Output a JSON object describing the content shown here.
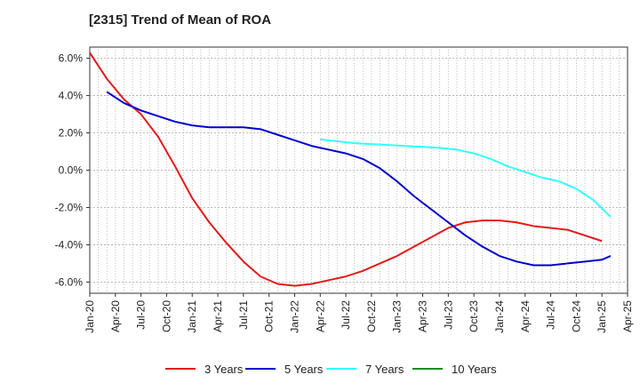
{
  "chart_data": {
    "type": "line",
    "title": "[2315]  Trend of Mean of ROA",
    "xlabel": "",
    "ylabel": "",
    "ylim": [
      -6.6,
      6.6
    ],
    "yticks": [
      6,
      4,
      2,
      0,
      -2,
      -4,
      -6
    ],
    "ytick_labels": [
      "6.0%",
      "4.0%",
      "2.0%",
      "0.0%",
      "-2.0%",
      "-4.0%",
      "-6.0%"
    ],
    "x_start": "Jan-20",
    "x_labels": [
      "Jan-20",
      "Apr-20",
      "Jul-20",
      "Oct-20",
      "Jan-21",
      "Apr-21",
      "Jul-21",
      "Oct-21",
      "Jan-22",
      "Apr-22",
      "Jul-22",
      "Oct-22",
      "Jan-23",
      "Apr-23",
      "Jul-23",
      "Oct-23",
      "Jan-24",
      "Apr-24",
      "Jul-24",
      "Oct-24",
      "Jan-25",
      "Apr-25"
    ],
    "grid": true,
    "legend_position": "bottom",
    "series": [
      {
        "name": "3 Years",
        "color": "#e31a1c",
        "points": [
          [
            "Jan-20",
            6.3
          ],
          [
            "Mar-20",
            4.9
          ],
          [
            "May-20",
            3.8
          ],
          [
            "Jul-20",
            3.0
          ],
          [
            "Sep-20",
            1.8
          ],
          [
            "Nov-20",
            0.2
          ],
          [
            "Jan-21",
            -1.5
          ],
          [
            "Mar-21",
            -2.8
          ],
          [
            "May-21",
            -3.9
          ],
          [
            "Jul-21",
            -4.9
          ],
          [
            "Sep-21",
            -5.7
          ],
          [
            "Nov-21",
            -6.1
          ],
          [
            "Jan-22",
            -6.2
          ],
          [
            "Mar-22",
            -6.1
          ],
          [
            "May-22",
            -5.9
          ],
          [
            "Jul-22",
            -5.7
          ],
          [
            "Sep-22",
            -5.4
          ],
          [
            "Nov-22",
            -5.0
          ],
          [
            "Jan-23",
            -4.6
          ],
          [
            "Mar-23",
            -4.1
          ],
          [
            "May-23",
            -3.6
          ],
          [
            "Jul-23",
            -3.1
          ],
          [
            "Sep-23",
            -2.8
          ],
          [
            "Nov-23",
            -2.7
          ],
          [
            "Jan-24",
            -2.7
          ],
          [
            "Mar-24",
            -2.8
          ],
          [
            "May-24",
            -3.0
          ],
          [
            "Jul-24",
            -3.1
          ],
          [
            "Sep-24",
            -3.2
          ],
          [
            "Nov-24",
            -3.5
          ],
          [
            "Jan-25",
            -3.8
          ]
        ]
      },
      {
        "name": "5 Years",
        "color": "#0000cc",
        "points": [
          [
            "Mar-20",
            4.2
          ],
          [
            "May-20",
            3.6
          ],
          [
            "Jul-20",
            3.2
          ],
          [
            "Sep-20",
            2.9
          ],
          [
            "Nov-20",
            2.6
          ],
          [
            "Jan-21",
            2.4
          ],
          [
            "Mar-21",
            2.3
          ],
          [
            "May-21",
            2.3
          ],
          [
            "Jul-21",
            2.3
          ],
          [
            "Sep-21",
            2.2
          ],
          [
            "Nov-21",
            1.9
          ],
          [
            "Jan-22",
            1.6
          ],
          [
            "Mar-22",
            1.3
          ],
          [
            "May-22",
            1.1
          ],
          [
            "Jul-22",
            0.9
          ],
          [
            "Sep-22",
            0.6
          ],
          [
            "Nov-22",
            0.1
          ],
          [
            "Jan-23",
            -0.6
          ],
          [
            "Mar-23",
            -1.4
          ],
          [
            "May-23",
            -2.1
          ],
          [
            "Jul-23",
            -2.8
          ],
          [
            "Sep-23",
            -3.5
          ],
          [
            "Nov-23",
            -4.1
          ],
          [
            "Jan-24",
            -4.6
          ],
          [
            "Mar-24",
            -4.9
          ],
          [
            "May-24",
            -5.1
          ],
          [
            "Jul-24",
            -5.1
          ],
          [
            "Sep-24",
            -5.0
          ],
          [
            "Nov-24",
            -4.9
          ],
          [
            "Jan-25",
            -4.8
          ],
          [
            "Feb-25",
            -4.6
          ]
        ]
      },
      {
        "name": "7 Years",
        "color": "#33ffff",
        "points": [
          [
            "Apr-22",
            1.65
          ],
          [
            "Jun-22",
            1.55
          ],
          [
            "Aug-22",
            1.45
          ],
          [
            "Oct-22",
            1.4
          ],
          [
            "Dec-22",
            1.35
          ],
          [
            "Feb-23",
            1.3
          ],
          [
            "Apr-23",
            1.25
          ],
          [
            "Jun-23",
            1.2
          ],
          [
            "Aug-23",
            1.1
          ],
          [
            "Oct-23",
            0.9
          ],
          [
            "Dec-23",
            0.6
          ],
          [
            "Feb-24",
            0.2
          ],
          [
            "Apr-24",
            -0.1
          ],
          [
            "Jun-24",
            -0.4
          ],
          [
            "Aug-24",
            -0.6
          ],
          [
            "Oct-24",
            -1.0
          ],
          [
            "Dec-24",
            -1.6
          ],
          [
            "Feb-25",
            -2.5
          ]
        ]
      },
      {
        "name": "10 Years",
        "color": "#228b22",
        "points": []
      }
    ]
  }
}
